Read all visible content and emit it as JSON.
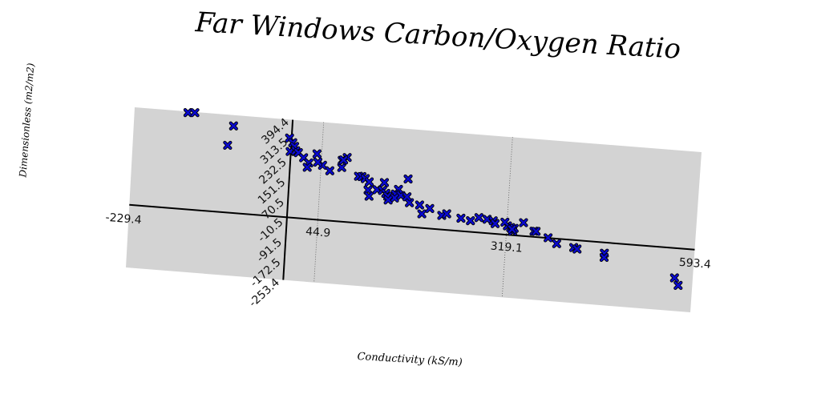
{
  "chart_data": {
    "type": "scatter",
    "title": "Far Windows Carbon/Oxygen Ratio",
    "xlabel": "Conductivity (kS/m)",
    "ylabel": "Dimensionless (m2/m2)",
    "xlim": [
      -229.4,
      593.4
    ],
    "ylim": [
      -253.4,
      394.4
    ],
    "x_ticks": [
      "-229.4",
      "44.9",
      "319.1",
      "593.4"
    ],
    "y_ticks": [
      "394.4",
      "313.5",
      "232.5",
      "151.5",
      "70.5",
      "-10.5",
      "-91.5",
      "-172.5",
      "-253.4"
    ],
    "grid": true,
    "marker_color": "#0a0ad0",
    "plot_background": "#d3d3d3",
    "series": [
      {
        "x": [
          -152,
          -142,
          -85,
          -92,
          -3,
          2,
          5,
          -1,
          7,
          11,
          19,
          27,
          25,
          47,
          38,
          40,
          58,
          75,
          82,
          75,
          77,
          100,
          105,
          110,
          116,
          128,
          115,
          136,
          141,
          117,
          138,
          159,
          155,
          163,
          144,
          154,
          145,
          176,
          172,
          172,
          191,
          195,
          206,
          224,
          231,
          252,
          266,
          278,
          290,
          299,
          302,
          320,
          325,
          316,
          328,
          330,
          327,
          343,
          359,
          362,
          380,
          393,
          418,
          423,
          463,
          463,
          567,
          573
        ],
        "y": [
          390,
          392,
          351,
          271,
          320,
          302,
          288,
          266,
          271,
          264,
          245,
          226,
          208,
          221,
          265,
          232,
          201,
          218,
          260,
          247,
          249,
          188,
          188,
          181,
          169,
          140,
          136,
          139,
          128,
          111,
          171,
          148,
          128,
          124,
          117,
          112,
          102,
          98,
          193,
          121,
          92,
          57,
          81,
          57,
          65,
          52,
          45,
          60,
          56,
          52,
          41,
          36,
          30,
          50,
          16,
          28,
          24,
          54,
          23,
          23,
          1,
          -20,
          -30,
          -35,
          -43,
          -60,
          -120,
          -149
        ]
      }
    ]
  }
}
